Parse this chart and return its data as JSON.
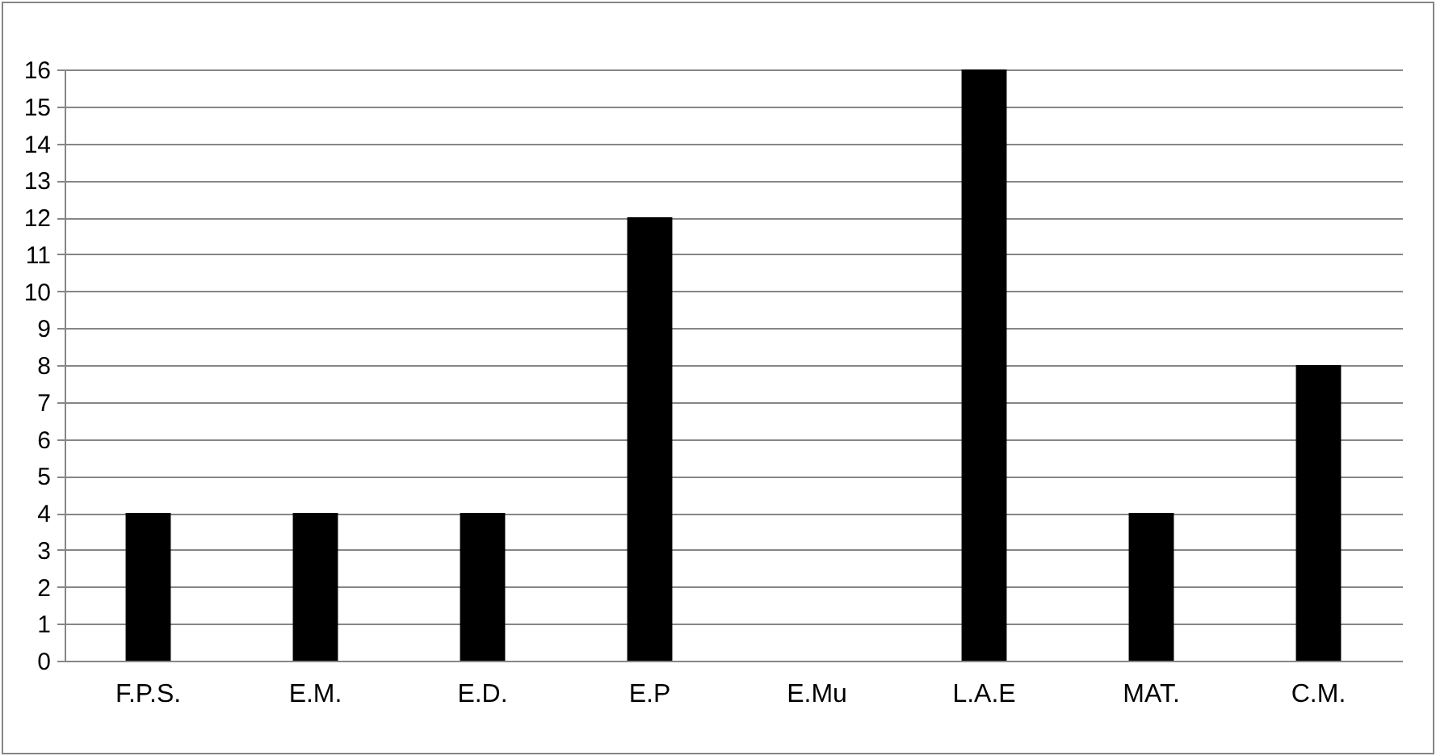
{
  "chart_data": {
    "type": "bar",
    "categories": [
      "F.P.S.",
      "E.M.",
      "E.D.",
      "E.P",
      "E.Mu",
      "L.A.E",
      "MAT.",
      "C.M."
    ],
    "values": [
      4,
      4,
      4,
      12,
      0,
      16,
      4,
      8
    ],
    "color": "#000000",
    "ylim": [
      0,
      16
    ],
    "yticks": [
      0,
      1,
      2,
      3,
      4,
      5,
      6,
      7,
      8,
      9,
      10,
      11,
      12,
      13,
      14,
      15,
      16
    ],
    "grid": "y"
  }
}
